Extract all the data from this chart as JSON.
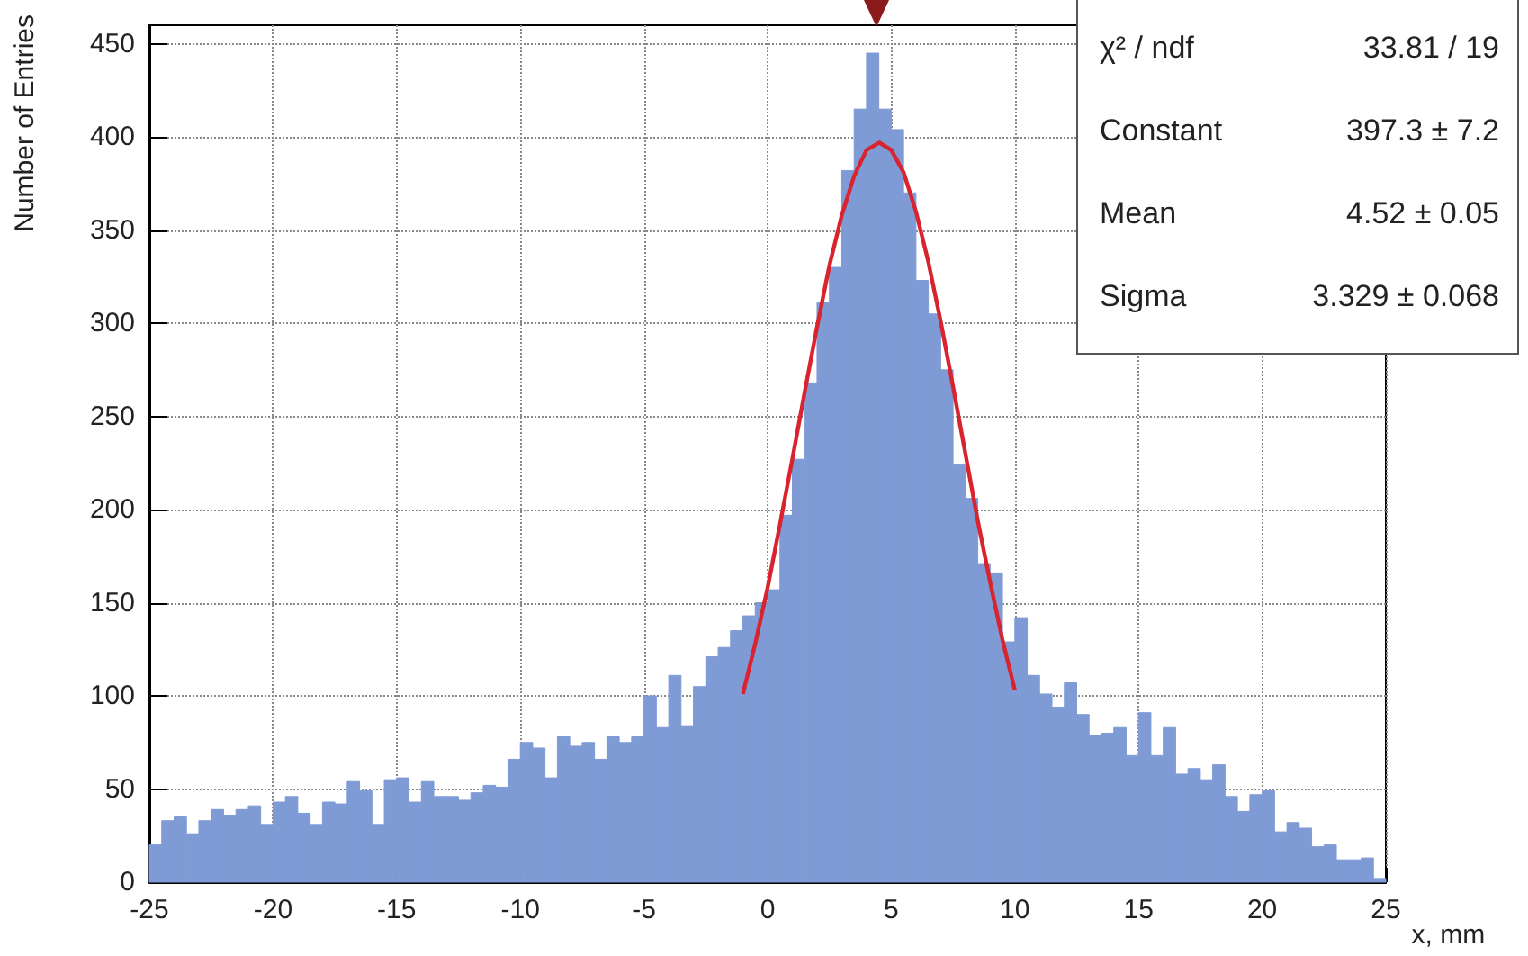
{
  "chart_data": {
    "type": "histogram",
    "xlabel": "x, mm",
    "ylabel": "Number of Entries",
    "bins": [
      -25,
      -24.5,
      -24,
      -23.5,
      -23,
      -22.5,
      -22,
      -21.5,
      -21,
      -20.5,
      -20,
      -19.5,
      -19,
      -18.5,
      -18,
      -17.5,
      -17,
      -16.5,
      -16,
      -15.5,
      -15,
      -14.5,
      -14,
      -13.5,
      -13,
      -12.5,
      -12,
      -11.5,
      -11,
      -10.5,
      -10,
      -9.5,
      -9,
      -8.5,
      -8,
      -7.5,
      -7,
      -6.5,
      -6,
      -5.5,
      -5,
      -4.5,
      -4,
      -3.5,
      -3,
      -2.5,
      -2,
      -1.5,
      -1,
      -0.5,
      0,
      0.5,
      1,
      1.5,
      2,
      2.5,
      3,
      3.5,
      4,
      4.5,
      5,
      5.5,
      6,
      6.5,
      7,
      7.5,
      8,
      8.5,
      9,
      9.5,
      10,
      10.5,
      11,
      11.5,
      12,
      12.5,
      13,
      13.5,
      14,
      14.5,
      15,
      15.5,
      16,
      16.5,
      17,
      17.5,
      18,
      18.5,
      19,
      19.5,
      20,
      20.5,
      21,
      21.5,
      22,
      22.5,
      23,
      23.5,
      24,
      24.5,
      25
    ],
    "series": [
      {
        "color": "#7f9bd6",
        "values": [
          20,
          33,
          35,
          26,
          33,
          39,
          36,
          39,
          41,
          31,
          43,
          46,
          37,
          31,
          43,
          42,
          54,
          49,
          31,
          55,
          56,
          43,
          54,
          46,
          46,
          44,
          48,
          52,
          51,
          66,
          75,
          72,
          56,
          78,
          73,
          75,
          66,
          78,
          75,
          78,
          100,
          83,
          111,
          84,
          105,
          121,
          126,
          135,
          143,
          150,
          157,
          197,
          227,
          268,
          311,
          330,
          382,
          415,
          445,
          415,
          404,
          370,
          323,
          305,
          275,
          224,
          206,
          171,
          166,
          129,
          142,
          111,
          101,
          94,
          107,
          90,
          79,
          80,
          83,
          68,
          91,
          68,
          83,
          58,
          61,
          55,
          63,
          46,
          38,
          47,
          49,
          27,
          32,
          29,
          19,
          20,
          12,
          12,
          13,
          2
        ]
      },
      {
        "type": "line",
        "color": "#d9232e",
        "x": [
          -1,
          -0.5,
          0,
          0.5,
          1,
          1.5,
          2,
          2.5,
          3,
          3.5,
          4,
          4.52,
          5,
          5.5,
          6,
          6.5,
          7,
          7.5,
          8,
          8.5,
          9,
          9.5,
          10
        ],
        "values": [
          101,
          128,
          158,
          192,
          227,
          263,
          298,
          331,
          358,
          379,
          393,
          397,
          393,
          381,
          360,
          333,
          301,
          266,
          230,
          194,
          161,
          130,
          103
        ]
      }
    ],
    "xlim": [
      -25,
      25
    ],
    "xticks": [
      -25,
      -20,
      -15,
      -10,
      -5,
      0,
      5,
      10,
      15,
      20,
      25
    ],
    "ylim": [
      0,
      460
    ],
    "yticks": [
      0,
      50,
      100,
      150,
      200,
      250,
      300,
      350,
      400,
      450
    ],
    "grid": true,
    "annotations": [
      "χ² / ndf",
      "33.81 / 19",
      "Constant",
      "397.3 ± 7.2",
      "Mean",
      "4.52 ± 0.05",
      "Sigma",
      "3.329 ± 0.068"
    ]
  }
}
